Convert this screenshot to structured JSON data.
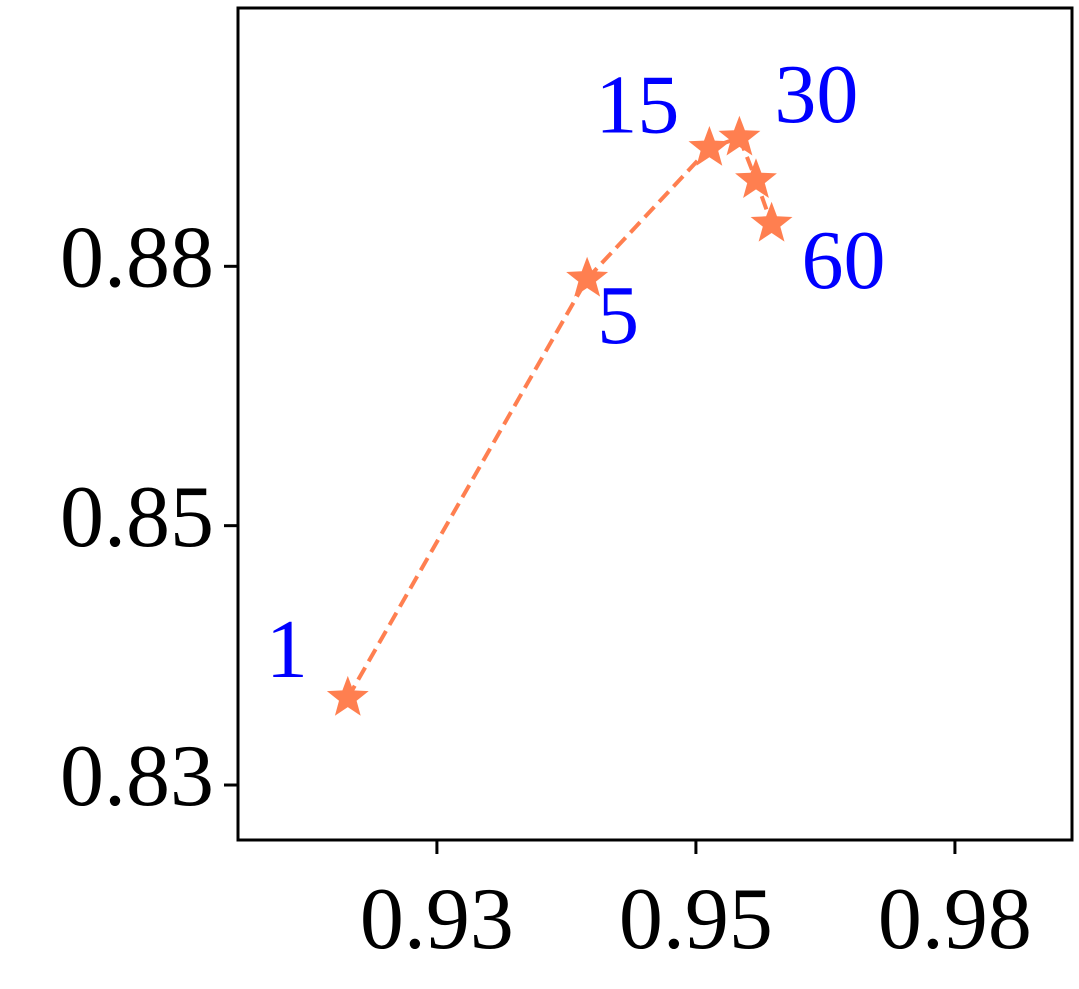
{
  "chart_data": {
    "type": "scatter",
    "series": [
      {
        "color": "#ff7f50",
        "x": [
          0.9164,
          0.9395,
          0.9513,
          0.9542,
          0.9558,
          0.9573
        ],
        "values": [
          0.8334,
          0.8738,
          0.8864,
          0.8874,
          0.8833,
          0.8791
        ],
        "point_labels": [
          1,
          5,
          15,
          30,
          null,
          60
        ],
        "point_label_color": "#0000ff"
      }
    ],
    "xlim": [
      0.9058,
      0.9863
    ],
    "ylim": [
      0.8197,
      0.8999
    ],
    "xticks": [
      {
        "value": 0.925,
        "label": "0.93"
      },
      {
        "value": 0.95,
        "label": "0.95"
      },
      {
        "value": 0.975,
        "label": "0.98"
      }
    ],
    "yticks": [
      {
        "value": 0.825,
        "label": "0.83"
      },
      {
        "value": 0.85,
        "label": "0.85"
      },
      {
        "value": 0.875,
        "label": "0.88"
      }
    ],
    "line_style": "dashed",
    "marker": "star"
  }
}
